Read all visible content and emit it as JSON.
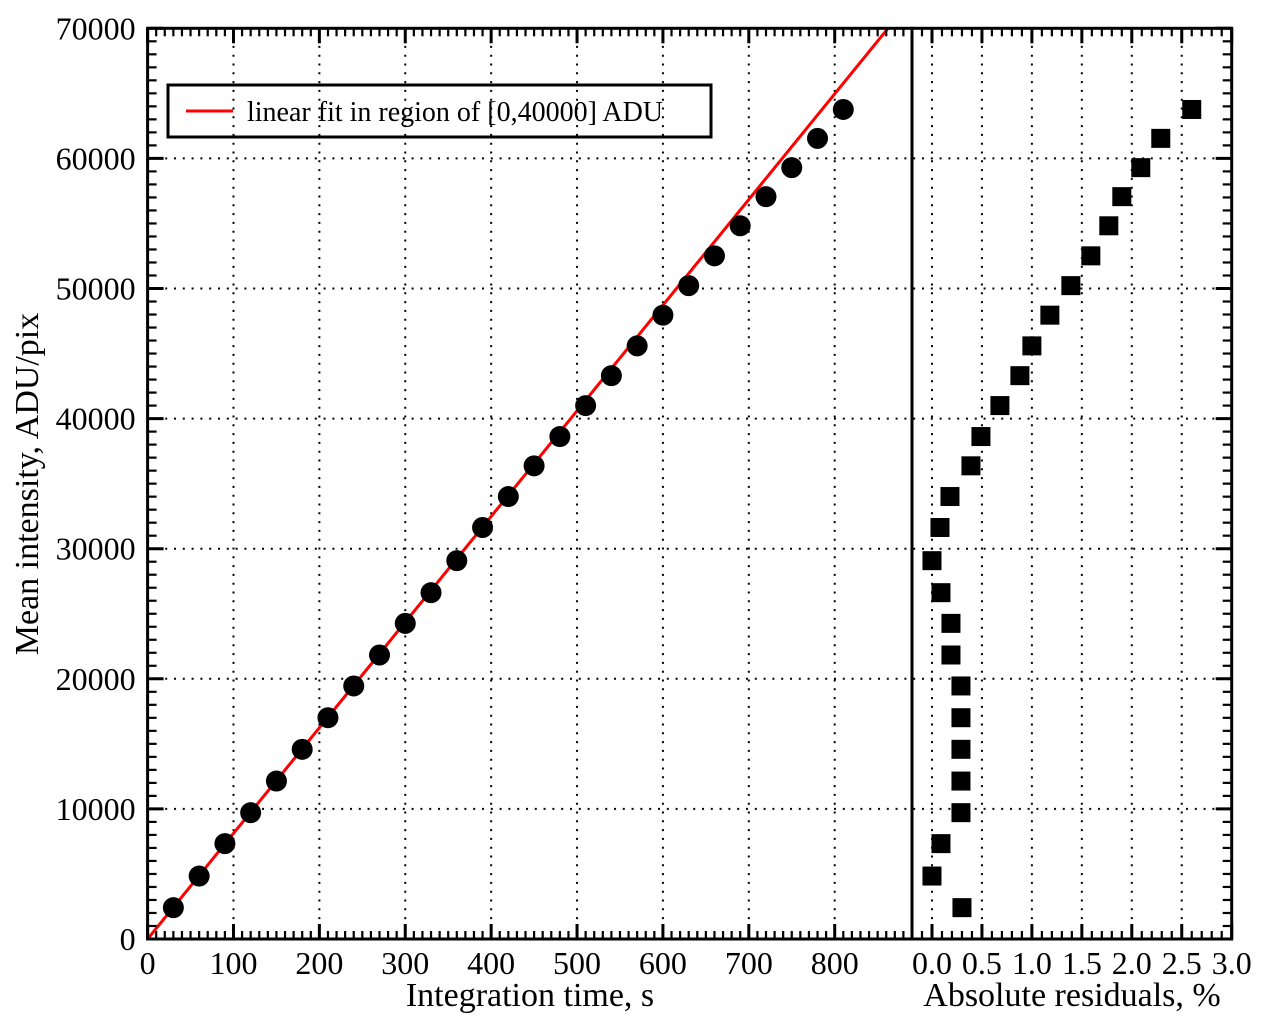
{
  "figure": {
    "background": "#ffffff",
    "frame_color": "#000000",
    "marker_color": "#000000"
  },
  "chart_data": [
    {
      "type": "scatter",
      "panel": "main",
      "xlabel": "Integration time, s",
      "ylabel": "Mean intensity, ADU/pix",
      "xlim": [
        0,
        890
      ],
      "ylim": [
        0,
        70000
      ],
      "xticks": [
        0,
        100,
        200,
        300,
        400,
        500,
        600,
        700,
        800
      ],
      "yticks": [
        0,
        10000,
        20000,
        30000,
        40000,
        50000,
        60000,
        70000
      ],
      "x_minor_step": 10,
      "y_minor_step": 1000,
      "grid": true,
      "marker": "circle",
      "marker_radius": 10.5,
      "x": [
        30,
        60,
        90,
        120,
        150,
        180,
        210,
        240,
        270,
        300,
        330,
        360,
        390,
        420,
        450,
        480,
        510,
        540,
        570,
        600,
        630,
        660,
        690,
        720,
        750,
        780,
        810
      ],
      "y": [
        2410,
        4840,
        7330,
        9710,
        12140,
        14580,
        17010,
        19450,
        21830,
        24260,
        26620,
        29080,
        31630,
        34010,
        36370,
        38620,
        41000,
        43300,
        45590,
        47950,
        50220,
        52510,
        54820,
        57060,
        59290,
        61540,
        63760
      ],
      "fit": {
        "label": "linear fit in region of [0,40000] ADU",
        "slope": 81.2,
        "intercept": 0,
        "color": "#ff0000"
      },
      "legend": {
        "position": "top-left",
        "border": true
      }
    },
    {
      "type": "scatter",
      "panel": "residuals",
      "xlabel": "Absolute residuals, %",
      "ylabel": "",
      "xlim": [
        -0.2,
        3.0
      ],
      "ylim": [
        0,
        70000
      ],
      "xticks": [
        0.0,
        0.5,
        1.0,
        1.5,
        2.0,
        2.5,
        3.0
      ],
      "x_minor_step": 0.1,
      "y_minor_step": 1000,
      "grid": true,
      "marker": "square",
      "marker_size": 19,
      "x": [
        0.3,
        0.0,
        0.09,
        0.29,
        0.29,
        0.29,
        0.29,
        0.29,
        0.19,
        0.19,
        0.09,
        0.0,
        0.08,
        0.18,
        0.39,
        0.49,
        0.68,
        0.88,
        1.0,
        1.18,
        1.39,
        1.59,
        1.77,
        1.9,
        2.09,
        2.29,
        2.6
      ],
      "y": [
        2410,
        4840,
        7330,
        9710,
        12140,
        14580,
        17010,
        19450,
        21830,
        24260,
        26620,
        29080,
        31630,
        34010,
        36370,
        38620,
        41000,
        43300,
        45590,
        47950,
        50220,
        52510,
        54820,
        57060,
        59290,
        61540,
        63760
      ]
    }
  ]
}
